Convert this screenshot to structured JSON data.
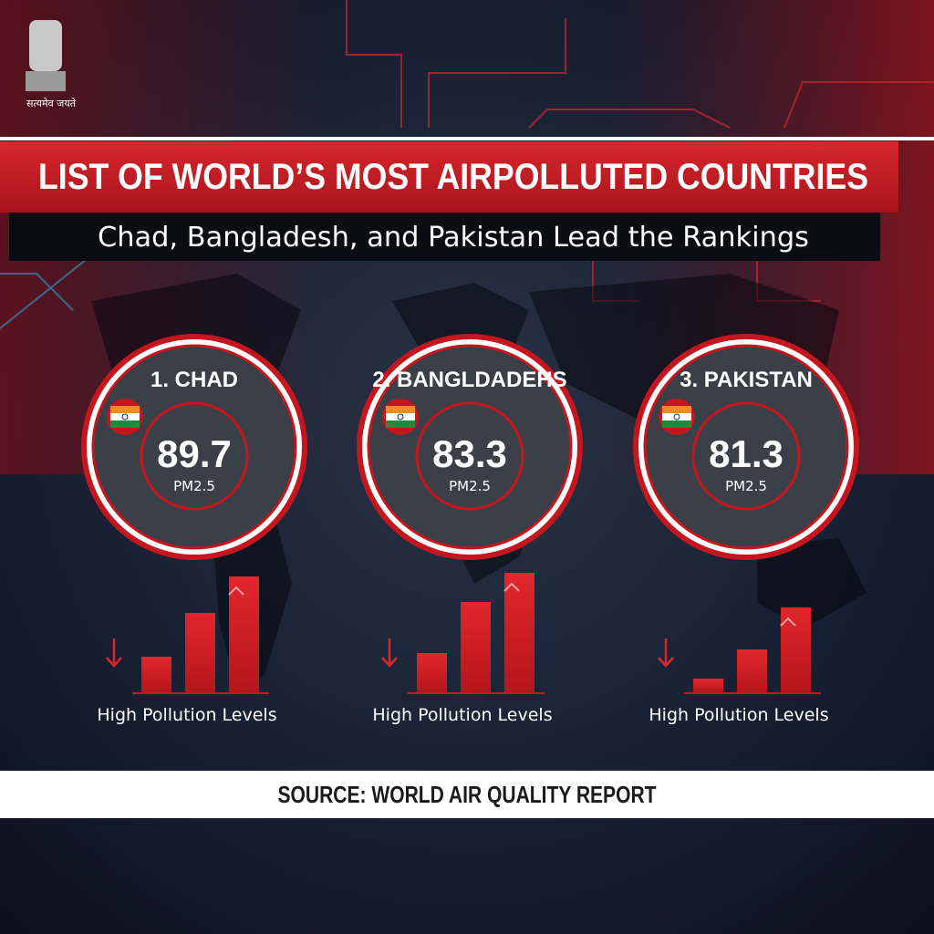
{
  "logo": {
    "motto": "सत्यमेव जयते"
  },
  "header": {
    "title": "LIST OF WORLD’S MOST AIRPOLLUTED COUNTRIES",
    "subtitle": "Chad, Bangladesh, and Pakistan Lead the Rankings"
  },
  "cards": [
    {
      "rank_label": "1. CHAD",
      "value": 89.7,
      "unit": "PM2.5",
      "caption": "High Pollution Levels"
    },
    {
      "rank_label": "2. BANGLDADEHS",
      "value": 83.3,
      "unit": "PM2.5",
      "caption": "High Pollution Levels"
    },
    {
      "rank_label": "3. PAKISTAN",
      "value": 81.3,
      "unit": "PM2.5",
      "caption": "High Pollution Levels"
    }
  ],
  "footer": {
    "source": "SOURCE: WORLD AIR QUALITY REPORT"
  }
}
